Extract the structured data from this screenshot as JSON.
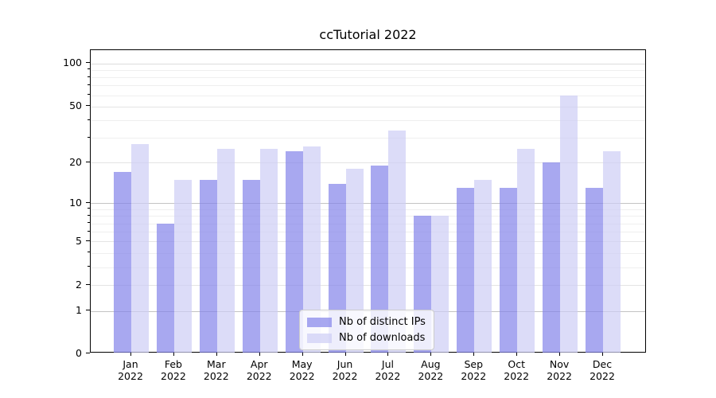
{
  "title": "ccTutorial 2022",
  "chart_data": {
    "type": "bar",
    "title": "ccTutorial 2022",
    "categories": [
      "Jan 2022",
      "Feb 2022",
      "Mar 2022",
      "Apr 2022",
      "May 2022",
      "Jun 2022",
      "Jul 2022",
      "Aug 2022",
      "Sep 2022",
      "Oct 2022",
      "Nov 2022",
      "Dec 2022"
    ],
    "series": [
      {
        "name": "Nb of distinct IPs",
        "color": "#8383ea",
        "values": [
          17,
          7,
          15,
          15,
          24,
          14,
          19,
          8,
          13,
          13,
          20,
          13
        ]
      },
      {
        "name": "Nb of downloads",
        "color": "#cdcdf5",
        "values": [
          27,
          15,
          25,
          25,
          26,
          18,
          34,
          8,
          15,
          25,
          60,
          24
        ]
      }
    ],
    "fill_alpha": 0.7,
    "yscale": "log1p",
    "yticks": [
      0,
      1,
      2,
      5,
      10,
      20,
      50,
      100
    ],
    "minor_ticks": [
      3,
      4,
      6,
      7,
      8,
      9,
      30,
      40,
      60,
      70,
      80,
      90
    ],
    "ylim": [
      0,
      123
    ],
    "xlabel": "",
    "ylabel": "",
    "grid": true,
    "legend_position": "lower center",
    "background": "#ffffff"
  }
}
